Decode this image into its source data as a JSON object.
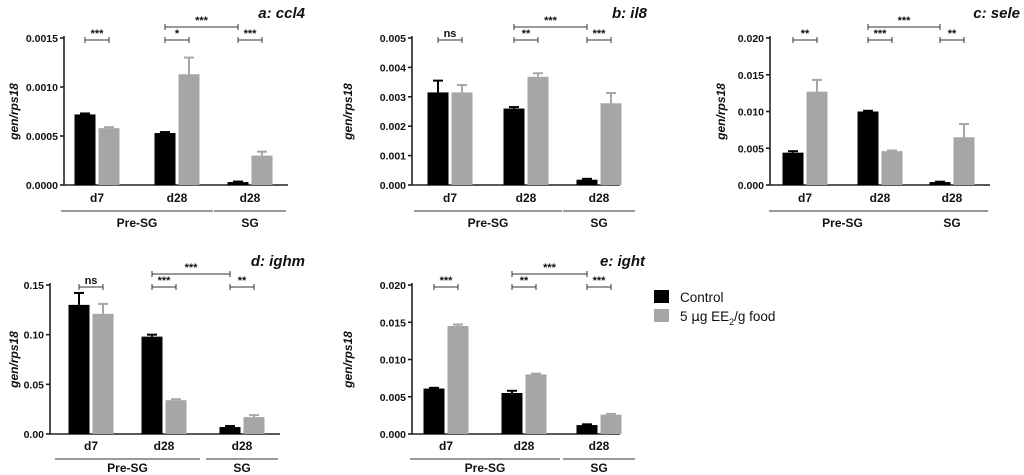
{
  "colors": {
    "control": "#000000",
    "treated": "#a6a6a6"
  },
  "legend": {
    "control_label": "Control",
    "treated_prefix": "5 ",
    "treated_mu": "μ",
    "treated_mid": "g EE",
    "treated_sub": "2",
    "treated_suffix": "/g food"
  },
  "chart_data": [
    {
      "type": "bar",
      "title": "a: ccl4",
      "ylabel": "gen/rps18",
      "ylim": [
        0,
        0.0015
      ],
      "yticks": [
        "0.0000",
        "0.0005",
        "0.0010",
        "0.0015"
      ],
      "ytick_values": [
        0,
        0.0005,
        0.001,
        0.0015
      ],
      "categories": [
        "d7",
        "d28",
        "d28"
      ],
      "groups": [
        {
          "label": "Pre-SG",
          "from": 0,
          "to": 1
        },
        {
          "label": "SG",
          "from": 2,
          "to": 2
        }
      ],
      "series": [
        {
          "name": "Control",
          "values": [
            0.00072,
            0.00053,
            3e-05
          ],
          "errors": [
            1e-05,
            1e-05,
            5e-06
          ]
        },
        {
          "name": "5 µg EE2/g food",
          "values": [
            0.00058,
            0.00113,
            0.0003
          ],
          "errors": [
            1e-05,
            0.00017,
            4e-05
          ]
        }
      ],
      "significance": [
        {
          "label": "***",
          "from": [
            0,
            0
          ],
          "to": [
            0,
            1
          ]
        },
        {
          "label": "*",
          "from": [
            1,
            0
          ],
          "to": [
            1,
            1
          ]
        },
        {
          "label": "***",
          "from": [
            1,
            0
          ],
          "to": [
            2,
            0
          ],
          "top": true
        },
        {
          "label": "***",
          "from": [
            2,
            0
          ],
          "to": [
            2,
            1
          ]
        }
      ]
    },
    {
      "type": "bar",
      "title": "b: il8",
      "ylabel": "gen/rps18",
      "ylim": [
        0,
        0.005
      ],
      "yticks": [
        "0.000",
        "0.001",
        "0.002",
        "0.003",
        "0.004",
        "0.005"
      ],
      "ytick_values": [
        0,
        0.001,
        0.002,
        0.003,
        0.004,
        0.005
      ],
      "categories": [
        "d7",
        "d28",
        "d28"
      ],
      "groups": [
        {
          "label": "Pre-SG",
          "from": 0,
          "to": 1
        },
        {
          "label": "SG",
          "from": 2,
          "to": 2
        }
      ],
      "series": [
        {
          "name": "Control",
          "values": [
            0.00315,
            0.0026,
            0.00018
          ],
          "errors": [
            0.0004,
            5e-05,
            3e-05
          ]
        },
        {
          "name": "5 µg EE2/g food",
          "values": [
            0.00315,
            0.00368,
            0.00278
          ],
          "errors": [
            0.00025,
            0.00012,
            0.00035
          ]
        }
      ],
      "significance": [
        {
          "label": "ns",
          "from": [
            0,
            0
          ],
          "to": [
            0,
            1
          ]
        },
        {
          "label": "**",
          "from": [
            1,
            0
          ],
          "to": [
            1,
            1
          ]
        },
        {
          "label": "***",
          "from": [
            1,
            0
          ],
          "to": [
            2,
            0
          ],
          "top": true
        },
        {
          "label": "***",
          "from": [
            2,
            0
          ],
          "to": [
            2,
            1
          ]
        }
      ]
    },
    {
      "type": "bar",
      "title": "c: sele",
      "ylabel": "gen/rps18",
      "ylim": [
        0,
        0.02
      ],
      "yticks": [
        "0.000",
        "0.005",
        "0.010",
        "0.015",
        "0.020"
      ],
      "ytick_values": [
        0,
        0.005,
        0.01,
        0.015,
        0.02
      ],
      "categories": [
        "d7",
        "d28",
        "d28"
      ],
      "groups": [
        {
          "label": "Pre-SG",
          "from": 0,
          "to": 1
        },
        {
          "label": "SG",
          "from": 2,
          "to": 2
        }
      ],
      "series": [
        {
          "name": "Control",
          "values": [
            0.0044,
            0.01,
            0.0004
          ],
          "errors": [
            0.0002,
            0.0001,
            5e-05
          ]
        },
        {
          "name": "5 µg EE2/g food",
          "values": [
            0.0127,
            0.0046,
            0.0065
          ],
          "errors": [
            0.0016,
            0.0001,
            0.0018
          ]
        }
      ],
      "significance": [
        {
          "label": "**",
          "from": [
            0,
            0
          ],
          "to": [
            0,
            1
          ]
        },
        {
          "label": "***",
          "from": [
            1,
            0
          ],
          "to": [
            1,
            1
          ]
        },
        {
          "label": "***",
          "from": [
            1,
            0
          ],
          "to": [
            2,
            0
          ],
          "top": true
        },
        {
          "label": "**",
          "from": [
            2,
            0
          ],
          "to": [
            2,
            1
          ]
        }
      ]
    },
    {
      "type": "bar",
      "title": "d: ighm",
      "ylabel": "gen/rps18",
      "ylim": [
        0,
        0.15
      ],
      "yticks": [
        "0.00",
        "0.05",
        "0.10",
        "0.15"
      ],
      "ytick_values": [
        0,
        0.05,
        0.1,
        0.15
      ],
      "categories": [
        "d7",
        "d28",
        "d28"
      ],
      "groups": [
        {
          "label": "Pre-SG",
          "from": 0,
          "to": 1
        },
        {
          "label": "SG",
          "from": 2,
          "to": 2
        }
      ],
      "series": [
        {
          "name": "Control",
          "values": [
            0.13,
            0.098,
            0.007
          ],
          "errors": [
            0.012,
            0.002,
            0.001
          ]
        },
        {
          "name": "5 µg EE2/g food",
          "values": [
            0.121,
            0.034,
            0.017
          ],
          "errors": [
            0.01,
            0.001,
            0.002
          ]
        }
      ],
      "significance": [
        {
          "label": "ns",
          "from": [
            0,
            0
          ],
          "to": [
            0,
            1
          ]
        },
        {
          "label": "***",
          "from": [
            1,
            0
          ],
          "to": [
            1,
            1
          ]
        },
        {
          "label": "***",
          "from": [
            1,
            0
          ],
          "to": [
            2,
            0
          ],
          "top": true
        },
        {
          "label": "**",
          "from": [
            2,
            0
          ],
          "to": [
            2,
            1
          ]
        }
      ]
    },
    {
      "type": "bar",
      "title": "e: ight",
      "ylabel": "gen/rps18",
      "ylim": [
        0,
        0.02
      ],
      "yticks": [
        "0.000",
        "0.005",
        "0.010",
        "0.015",
        "0.020"
      ],
      "ytick_values": [
        0,
        0.005,
        0.01,
        0.015,
        0.02
      ],
      "categories": [
        "d7",
        "d28",
        "d28"
      ],
      "groups": [
        {
          "label": "Pre-SG",
          "from": 0,
          "to": 1
        },
        {
          "label": "SG",
          "from": 2,
          "to": 2
        }
      ],
      "series": [
        {
          "name": "Control",
          "values": [
            0.0061,
            0.0055,
            0.0012
          ],
          "errors": [
            0.0001,
            0.0003,
            0.0001
          ]
        },
        {
          "name": "5 µg EE2/g food",
          "values": [
            0.0145,
            0.008,
            0.0026
          ],
          "errors": [
            0.0002,
            0.0001,
            0.0001
          ]
        }
      ],
      "significance": [
        {
          "label": "***",
          "from": [
            0,
            0
          ],
          "to": [
            0,
            1
          ]
        },
        {
          "label": "**",
          "from": [
            1,
            0
          ],
          "to": [
            1,
            1
          ]
        },
        {
          "label": "***",
          "from": [
            1,
            0
          ],
          "to": [
            2,
            0
          ],
          "top": true
        },
        {
          "label": "***",
          "from": [
            2,
            0
          ],
          "to": [
            2,
            1
          ]
        }
      ]
    }
  ]
}
